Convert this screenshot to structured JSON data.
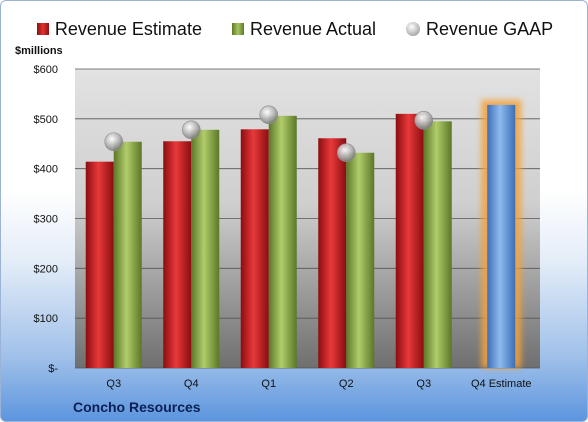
{
  "chart_data": {
    "type": "bar",
    "units_label": "$millions",
    "company": "Concho Resources",
    "categories": [
      "Q3",
      "Q4",
      "Q1",
      "Q2",
      "Q3",
      "Q4 Estimate"
    ],
    "series": [
      {
        "name": "Revenue Estimate",
        "values": [
          414,
          455,
          479,
          461,
          510,
          null
        ],
        "color": "#d3262a"
      },
      {
        "name": "Revenue Actual",
        "values": [
          454,
          478,
          506,
          432,
          495,
          null
        ],
        "color": "#8daa4b"
      },
      {
        "name": "Revenue GAAP",
        "values": [
          454,
          478,
          508,
          432,
          497,
          null
        ],
        "color": "#b8b8b8"
      }
    ],
    "forecast": {
      "category": "Q4 Estimate",
      "value": 528,
      "color": "#5b9bd5",
      "glow": "#f4a23a"
    },
    "yticks": [
      0,
      100,
      200,
      300,
      400,
      500,
      600
    ],
    "ytick_labels": [
      "$-",
      "$100",
      "$200",
      "$300",
      "$400",
      "$500",
      "$600"
    ],
    "ylim": [
      0,
      600
    ],
    "grid": true,
    "legend_position": "top"
  }
}
